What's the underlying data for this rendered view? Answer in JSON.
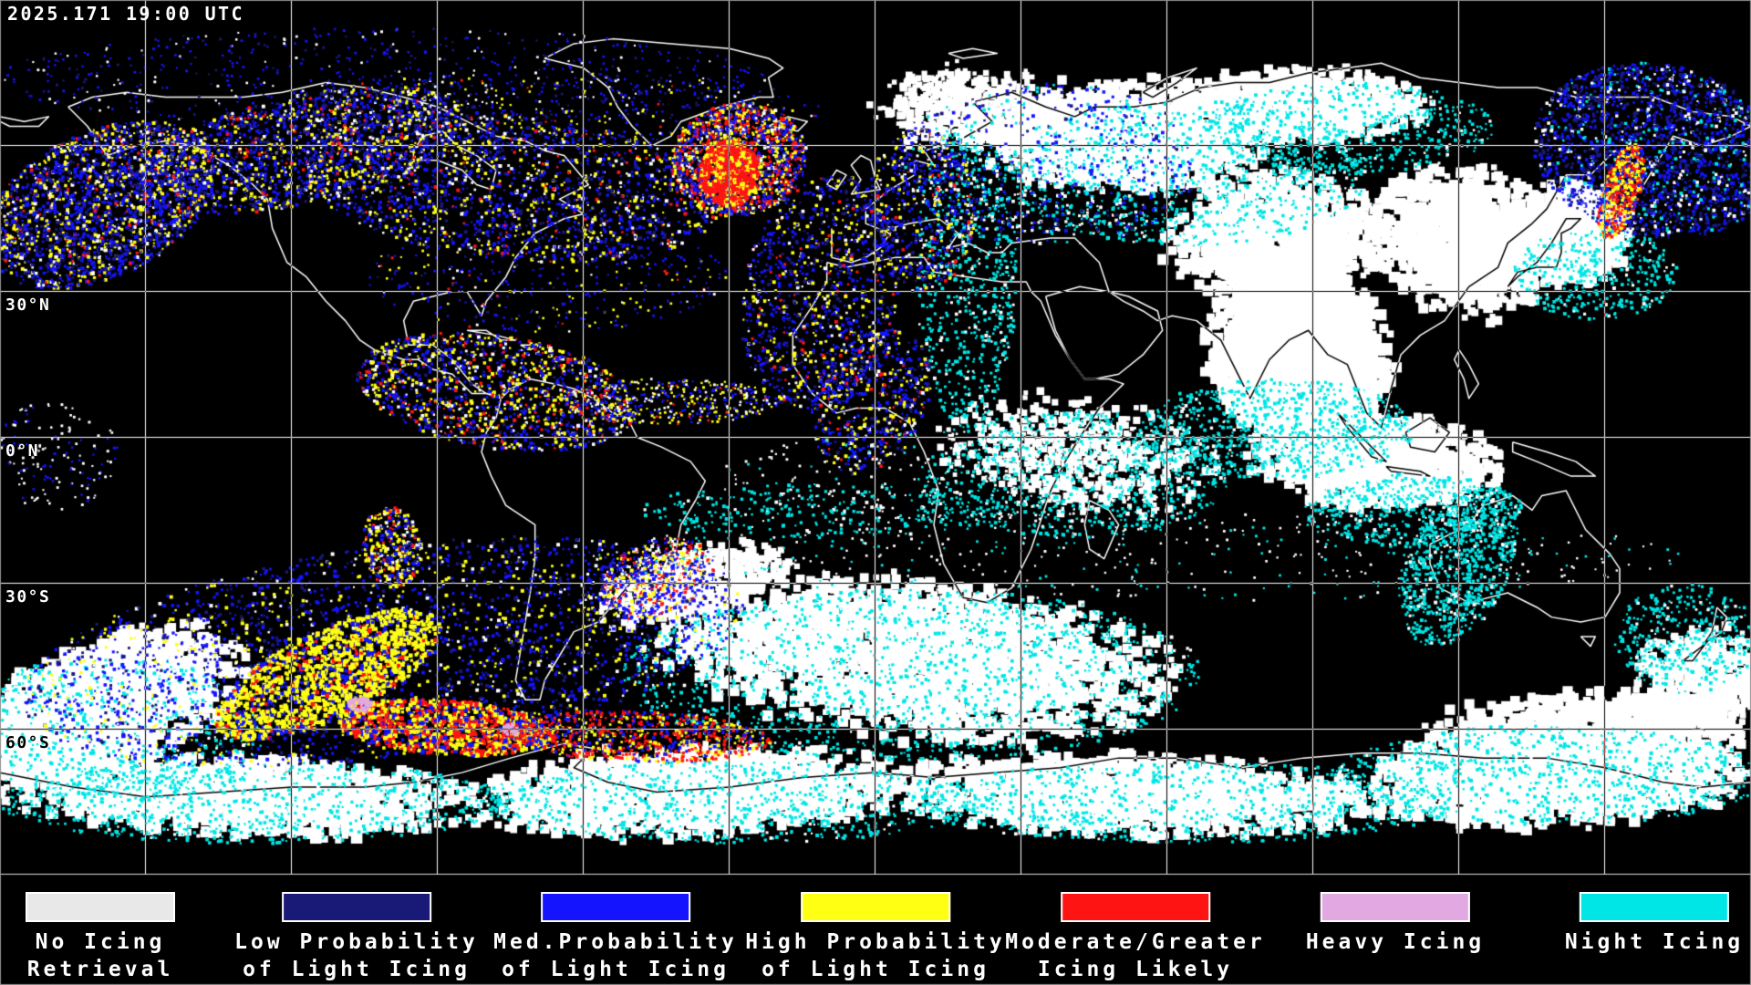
{
  "header": {
    "timestamp": "2025.171 19:00 UTC"
  },
  "map": {
    "background": "#000000",
    "grid_color": "#ffffff",
    "coastline_color": "#ffffff",
    "grid_spacing_deg": 30,
    "lat_labels": [
      {
        "text": "30°N",
        "color": "#ffffff"
      },
      {
        "text": "0°N",
        "color": "#ffffff"
      },
      {
        "text": "30°S",
        "color": "#ffffff"
      },
      {
        "text": "60°S",
        "color": "#000000"
      }
    ]
  },
  "legend": {
    "items": [
      {
        "id": "no-icing-retrieval",
        "color": "#e8e8e8",
        "line1": "No Icing",
        "line2": "Retrieval"
      },
      {
        "id": "low-probability",
        "color": "#191977",
        "line1": "Low Probability",
        "line2": "of Light Icing"
      },
      {
        "id": "med-probability",
        "color": "#1414ff",
        "line1": "Med.Probability",
        "line2": "of Light Icing"
      },
      {
        "id": "high-probability",
        "color": "#ffff14",
        "line1": "High Probability",
        "line2": "of Light Icing"
      },
      {
        "id": "moderate-greater",
        "color": "#ff1414",
        "line1": "Moderate/Greater",
        "line2": "Icing Likely"
      },
      {
        "id": "heavy-icing",
        "color": "#e2a8e2",
        "line1": "Heavy Icing",
        "line2": ""
      },
      {
        "id": "night-icing",
        "color": "#00e6e6",
        "line1": "Night Icing",
        "line2": ""
      }
    ]
  }
}
